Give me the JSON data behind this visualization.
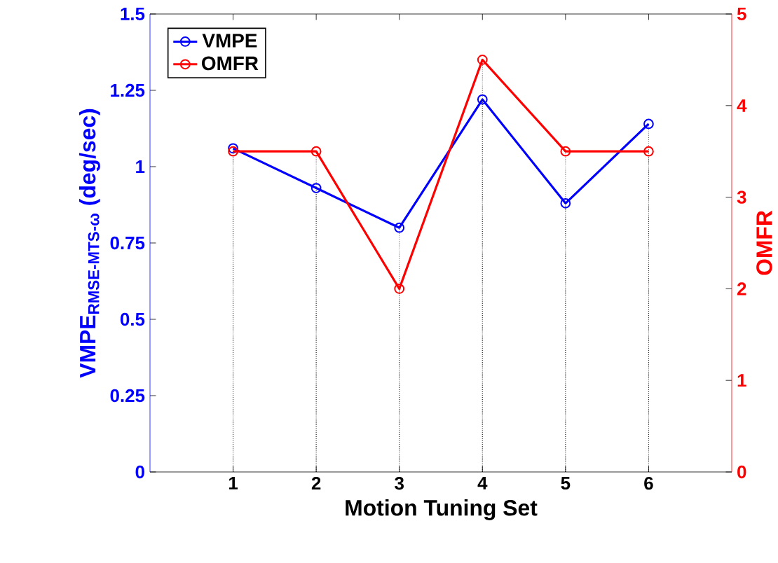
{
  "chart_data": {
    "type": "line",
    "xlabel": "Motion Tuning Set",
    "ylabel": "VMPE$_{RMSE-MTS-ω}$ (deg/sec)",
    "y2label": "OMFR",
    "x": [
      1,
      2,
      3,
      4,
      5,
      6
    ],
    "xlim": [
      0,
      7
    ],
    "xticks": [
      1,
      2,
      3,
      4,
      5,
      6
    ],
    "ylim": [
      0,
      1.5
    ],
    "yticks": [
      0,
      0.25,
      0.5,
      0.75,
      1,
      1.25,
      1.5
    ],
    "y2lim": [
      0,
      5
    ],
    "y2ticks": [
      0,
      1,
      2,
      3,
      4,
      5
    ],
    "series": [
      {
        "name": "VMPE",
        "color": "#0000ff",
        "values": [
          1.06,
          0.93,
          0.8,
          1.22,
          0.88,
          1.14
        ]
      },
      {
        "name": "OMFR",
        "color": "#ff0000",
        "axis": "y2",
        "values": [
          3.5,
          3.5,
          2,
          4.5,
          3.5,
          3.5
        ]
      }
    ],
    "legend": "top left",
    "marker": "circle",
    "line_style": "solid",
    "grid": "x"
  }
}
